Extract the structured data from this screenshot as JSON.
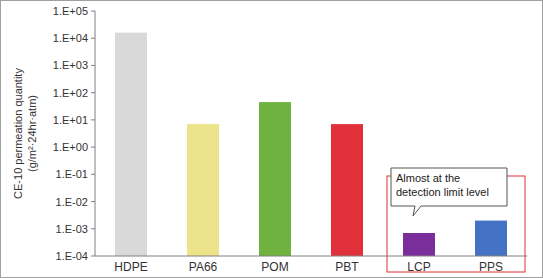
{
  "chart_data": {
    "type": "bar",
    "log": "y",
    "ylabel": "CE-10 permeation quantity (g/m²·24hr·atm)",
    "annotation": "Almost at the detection limit level",
    "categories": [
      "HDPE",
      "PA66",
      "POM",
      "PBT",
      "LCP",
      "PPS"
    ],
    "values": [
      16000,
      7,
      45,
      7,
      0.0007,
      0.002
    ],
    "colors": [
      "#d9d9d9",
      "#ece38a",
      "#6fb23f",
      "#e0313b",
      "#7a2e9c",
      "#4472c4"
    ],
    "ylim": [
      0.0001,
      100000
    ],
    "yticks": [
      {
        "value": 0.0001,
        "label": "1.E-04"
      },
      {
        "value": 0.001,
        "label": "1.E-03"
      },
      {
        "value": 0.01,
        "label": "1.E-02"
      },
      {
        "value": 0.1,
        "label": "1.E-01"
      },
      {
        "value": 1,
        "label": "1.E+00"
      },
      {
        "value": 10,
        "label": "1.E+01"
      },
      {
        "value": 100,
        "label": "1.E+02"
      },
      {
        "value": 1000,
        "label": "1.E+03"
      },
      {
        "value": 10000,
        "label": "1.E+04"
      },
      {
        "value": 100000,
        "label": "1.E+05"
      }
    ],
    "grid": false
  }
}
